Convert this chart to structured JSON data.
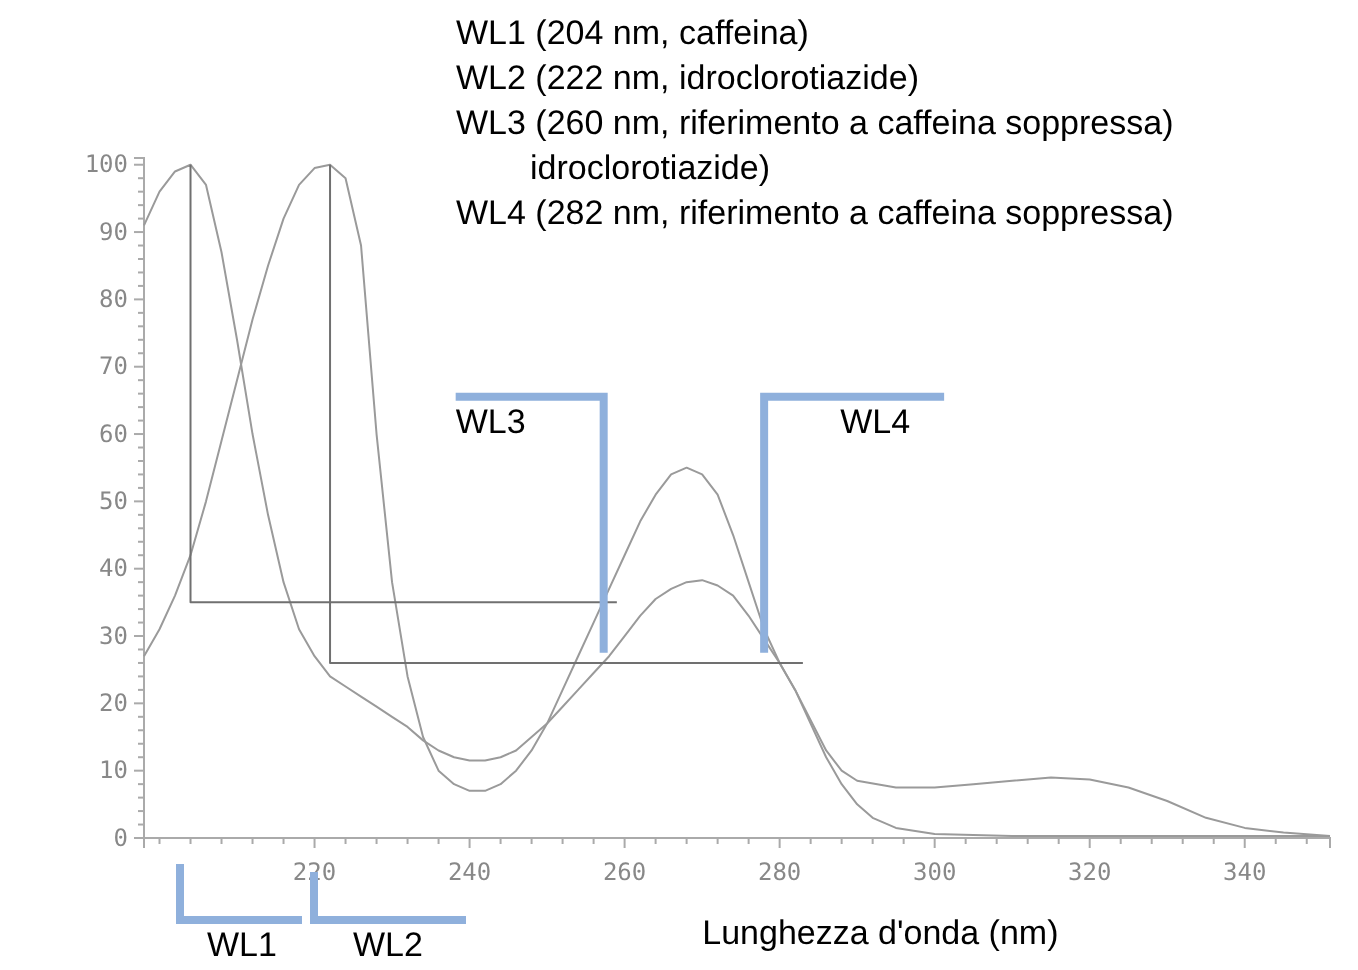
{
  "chart_data": {
    "type": "line",
    "xlabel": "Lunghezza d'onda (nm)",
    "xlim": [
      198,
      351
    ],
    "ylim": [
      0,
      101
    ],
    "xticks": [
      220,
      240,
      260,
      280,
      300,
      320,
      340
    ],
    "yticks": [
      0,
      10,
      20,
      30,
      40,
      50,
      60,
      70,
      80,
      90,
      100
    ],
    "grid": false,
    "marker": "none",
    "line_style": "solid",
    "series": [
      {
        "color": "#9a9a9a",
        "x": [
          198,
          200,
          202,
          204,
          206,
          208,
          210,
          212,
          214,
          216,
          218,
          220,
          222,
          224,
          226,
          228,
          230,
          232,
          234,
          236,
          238,
          240,
          242,
          244,
          246,
          248,
          250,
          252,
          254,
          256,
          258,
          260,
          262,
          264,
          266,
          268,
          270,
          272,
          274,
          276,
          278,
          280,
          282,
          284,
          286,
          288,
          290,
          292,
          295,
          300,
          310,
          320,
          330,
          340,
          351
        ],
        "values": [
          91,
          96,
          99,
          100,
          97,
          87,
          74,
          60,
          48,
          38,
          31,
          27,
          24,
          22.5,
          21,
          19.5,
          18,
          16.5,
          14.5,
          13,
          12,
          11.5,
          11.5,
          12,
          13,
          15,
          17,
          19.5,
          22,
          24.5,
          27,
          30,
          33,
          35.5,
          37,
          38,
          38.3,
          37.5,
          36,
          33,
          29.5,
          26,
          22,
          17,
          12,
          8,
          5,
          3,
          1.5,
          0.6,
          0.3,
          0.3,
          0.3,
          0.3,
          0.3
        ]
      },
      {
        "color": "#9a9a9a",
        "x": [
          198,
          200,
          202,
          204,
          206,
          208,
          210,
          212,
          214,
          216,
          218,
          220,
          222,
          224,
          226,
          228,
          230,
          232,
          234,
          236,
          238,
          240,
          242,
          244,
          246,
          248,
          250,
          252,
          254,
          256,
          258,
          260,
          262,
          264,
          266,
          268,
          270,
          272,
          274,
          276,
          278,
          280,
          282,
          284,
          286,
          288,
          290,
          295,
          300,
          305,
          310,
          315,
          320,
          325,
          330,
          335,
          340,
          345,
          351
        ],
        "values": [
          27,
          31,
          36,
          42,
          50,
          59,
          68,
          77,
          85,
          92,
          97,
          99.5,
          100,
          98,
          88,
          60,
          38,
          24,
          15,
          10,
          8,
          7,
          7,
          8,
          10,
          13,
          17,
          22,
          27,
          32,
          37,
          42,
          47,
          51,
          54,
          55,
          54,
          51,
          45,
          38,
          31,
          26,
          22,
          17.5,
          13,
          10,
          8.5,
          7.5,
          7.5,
          8,
          8.5,
          9,
          8.7,
          7.5,
          5.5,
          3,
          1.5,
          0.8,
          0.3
        ]
      },
      {
        "color": "#707070",
        "x": [
          204,
          204,
          259
        ],
        "values": [
          100,
          35,
          35
        ]
      },
      {
        "color": "#707070",
        "x": [
          222,
          222,
          283
        ],
        "values": [
          100,
          26,
          26
        ]
      }
    ],
    "annotations": [
      "WL1 (204 nm, caffeina)",
      "WL2 (222 nm, idroclorotiazide)",
      "WL3 (260 nm, riferimento a caffeina soppressa)",
      "idroclorotiazide)",
      "WL4 (282 nm, riferimento a caffeina soppressa)",
      {
        "text": "WL3",
        "x": 257.3,
        "y": 27.5
      },
      {
        "text": "WL4",
        "x": 278,
        "y": 27.5
      },
      "WL1",
      "WL2"
    ]
  }
}
